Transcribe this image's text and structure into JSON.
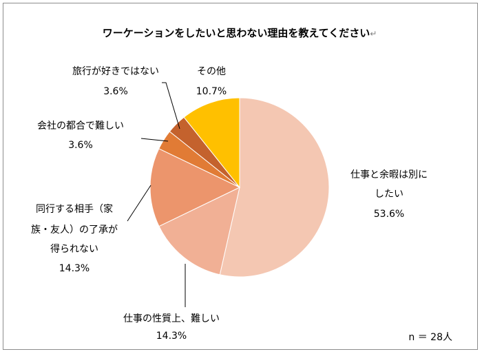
{
  "chart_data": {
    "type": "pie",
    "title": "ワーケーションをしたいと思わない理由を教えてください",
    "title_mark": "↵",
    "start": "top, clockwise",
    "slices": [
      {
        "label_lines": [
          "仕事と余暇は別に",
          "したい"
        ],
        "value_text": "53.6%",
        "value": 53.6,
        "color": "#F4C7B2"
      },
      {
        "label_lines": [
          "仕事の性質上、難しい"
        ],
        "value_text": "14.3%",
        "value": 14.3,
        "color": "#F1B095"
      },
      {
        "label_lines": [
          "同行する相手（家",
          "族・友人）の了承が",
          "得られない"
        ],
        "value_text": "14.3%",
        "value": 14.3,
        "color": "#EC956C"
      },
      {
        "label_lines": [
          "会社の都合で難しい"
        ],
        "value_text": "3.6%",
        "value": 3.6,
        "color": "#E17B35"
      },
      {
        "label_lines": [
          "旅行が好きではない"
        ],
        "value_text": "3.6%",
        "value": 3.6,
        "color": "#C4622D"
      },
      {
        "label_lines": [
          "その他"
        ],
        "value_text": "10.7%",
        "value": 10.7,
        "color": "#FFC000"
      }
    ],
    "legend": "none",
    "note": "n ＝ 28人"
  }
}
